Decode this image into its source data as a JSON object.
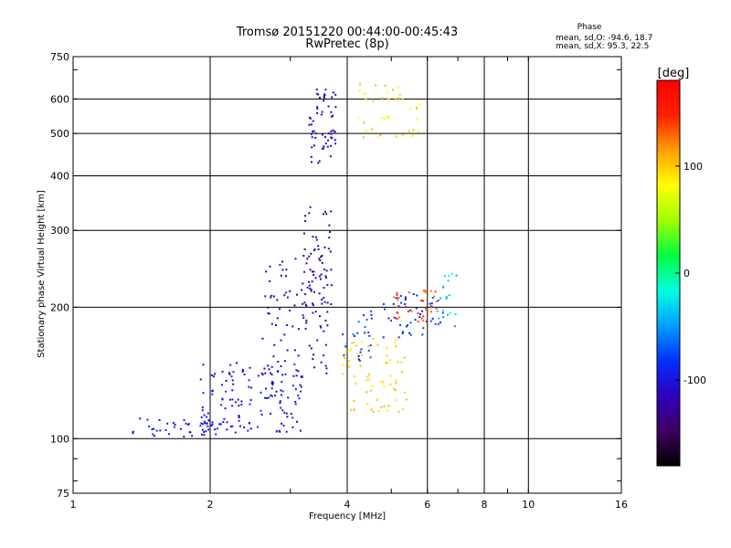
{
  "chart_data": {
    "type": "scatter",
    "title": "Tromsø 20151220 00:44:00-00:45:43",
    "subtitle": "RwPretec (8p)",
    "xlabel": "Frequency [MHz]",
    "ylabel": "Stationary phase Virtual Height [km]",
    "x_scale": "log",
    "y_scale": "log",
    "xlim": [
      1,
      16
    ],
    "ylim": [
      75,
      750
    ],
    "x_ticks": [
      {
        "value": 1,
        "label": "1"
      },
      {
        "value": 2,
        "label": "2"
      },
      {
        "value": 4,
        "label": "4"
      },
      {
        "value": 6,
        "label": "6"
      },
      {
        "value": 8,
        "label": "8"
      },
      {
        "value": 10,
        "label": "10"
      },
      {
        "value": 16,
        "label": "16"
      }
    ],
    "y_ticks": [
      {
        "value": 75,
        "label": "75"
      },
      {
        "value": 100,
        "label": "100"
      },
      {
        "value": 200,
        "label": "200"
      },
      {
        "value": 300,
        "label": "300"
      },
      {
        "value": 400,
        "label": "400"
      },
      {
        "value": 500,
        "label": "500"
      },
      {
        "value": 600,
        "label": "600"
      },
      {
        "value": 750,
        "label": "750"
      }
    ],
    "grid_x": [
      2,
      4,
      6,
      8,
      10
    ],
    "grid_y": [
      100,
      200,
      300,
      400,
      500,
      600
    ],
    "grid": true,
    "stats": {
      "heading": "Phase",
      "line1": "mean, sd,O: -94.6, 18.7",
      "line2": "mean, sd,X:  95.3, 22.5"
    },
    "colorbar": {
      "label": "[deg]",
      "range": [
        -180,
        180
      ],
      "ticks": [
        {
          "value": 100,
          "label": "100"
        },
        {
          "value": 0,
          "label": "0"
        },
        {
          "value": -100,
          "label": "-100"
        }
      ],
      "colors": [
        "#000000",
        "#400060",
        "#3000c0",
        "#0030ff",
        "#00a0ff",
        "#00ffe0",
        "#00ff40",
        "#a0ff00",
        "#ffff00",
        "#ffa000",
        "#ff2000",
        "#ff0000"
      ]
    },
    "clusters": [
      {
        "x": [
          1.35,
          2.1
        ],
        "y": [
          100,
          112
        ],
        "n": 45,
        "phase": [
          -110,
          -85
        ]
      },
      {
        "x": [
          1.9,
          3.2
        ],
        "y": [
          103,
          150
        ],
        "n": 140,
        "phase": [
          -120,
          -80
        ]
      },
      {
        "x": [
          2.6,
          3.7
        ],
        "y": [
          140,
          260
        ],
        "n": 90,
        "phase": [
          -125,
          -100
        ]
      },
      {
        "x": [
          3.2,
          3.7
        ],
        "y": [
          180,
          340
        ],
        "n": 60,
        "phase": [
          -135,
          -120
        ]
      },
      {
        "x": [
          3.3,
          3.8
        ],
        "y": [
          420,
          640
        ],
        "n": 60,
        "phase": [
          -125,
          -105
        ]
      },
      {
        "x": [
          3.9,
          5.4
        ],
        "y": [
          115,
          170
        ],
        "n": 70,
        "phase": [
          85,
          110
        ]
      },
      {
        "x": [
          4.8,
          6.5
        ],
        "y": [
          170,
          215
        ],
        "n": 45,
        "phase": [
          -100,
          -70
        ]
      },
      {
        "x": [
          5.0,
          6.3
        ],
        "y": [
          185,
          220
        ],
        "n": 35,
        "phase": [
          120,
          160
        ]
      },
      {
        "x": [
          4.2,
          5.8
        ],
        "y": [
          490,
          650
        ],
        "n": 40,
        "phase": [
          80,
          110
        ]
      },
      {
        "x": [
          6.3,
          7.0
        ],
        "y": [
          180,
          240
        ],
        "n": 20,
        "phase": [
          -60,
          -10
        ]
      },
      {
        "x": [
          3.9,
          4.6
        ],
        "y": [
          150,
          200
        ],
        "n": 25,
        "phase": [
          -100,
          -60
        ]
      }
    ]
  }
}
